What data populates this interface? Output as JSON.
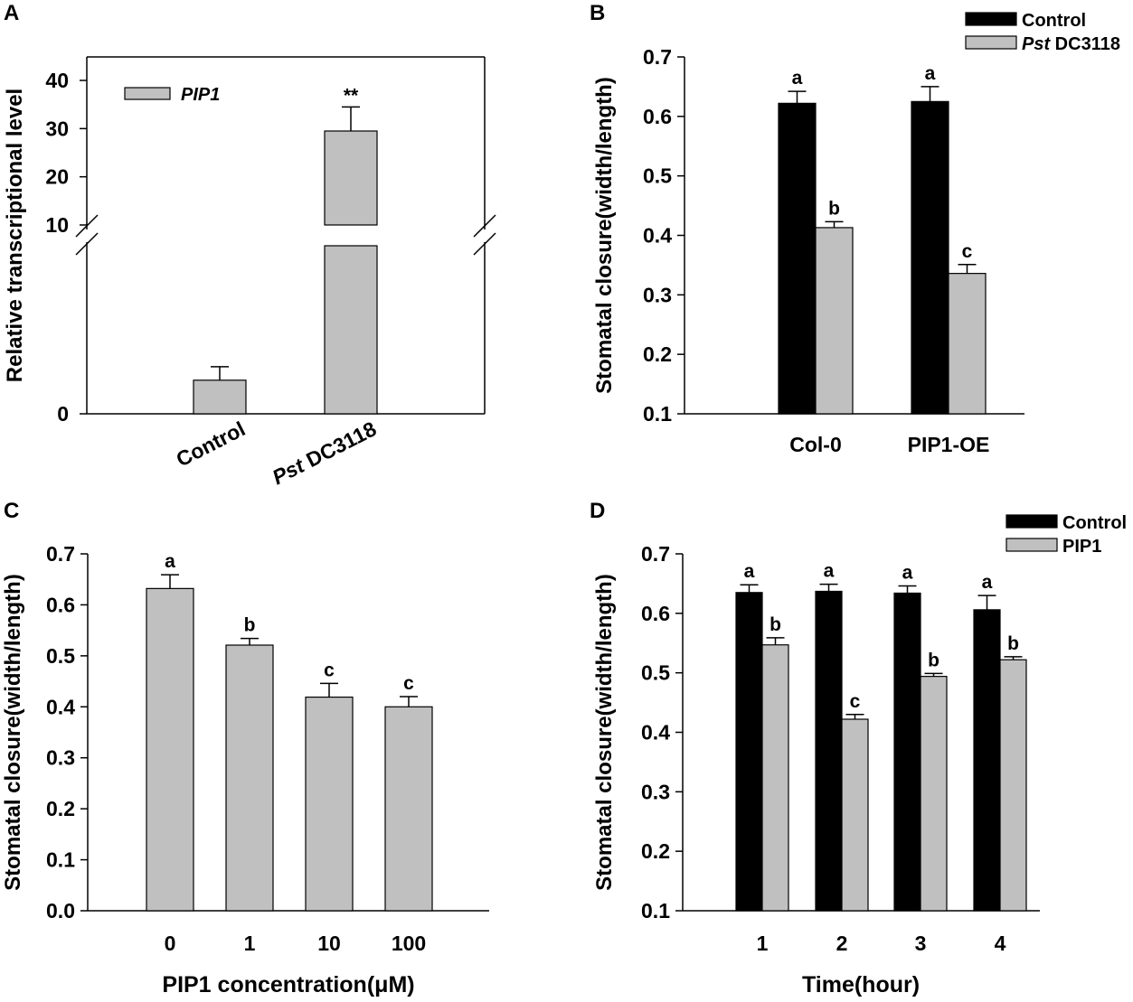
{
  "panels": {
    "A": "A",
    "B": "B",
    "C": "C",
    "D": "D"
  },
  "colors": {
    "control": "#000000",
    "treatment": "#c0c0c0"
  },
  "chart_data": [
    {
      "id": "A",
      "type": "bar",
      "title": "",
      "xlabel": "",
      "ylabel": "Relative transcriptional level",
      "broken_axis": {
        "lower_range": [
          0,
          5
        ],
        "upper_range": [
          10,
          45
        ],
        "break_marker": "//"
      },
      "yticks_lower": [
        "0"
      ],
      "yticks_upper": [
        "10",
        "20",
        "30",
        "40"
      ],
      "categories": [
        {
          "label": "Control",
          "prefix_italic": "",
          "suffix": "Control"
        },
        {
          "label": "Pst DC3118",
          "prefix_italic": "Pst",
          "suffix": " DC3118"
        }
      ],
      "legend": [
        {
          "name": "PIP1",
          "italic": true
        }
      ],
      "series": [
        {
          "name": "PIP1",
          "values": [
            1.0,
            29.5
          ],
          "errors": [
            0.4,
            5.0
          ]
        }
      ],
      "annotations": [
        "",
        "**"
      ]
    },
    {
      "id": "B",
      "type": "bar",
      "title": "",
      "xlabel": "",
      "ylabel": "Stomatal closure(width/length)",
      "ylim": [
        0.1,
        0.7
      ],
      "yticks": [
        "0.1",
        "0.2",
        "0.3",
        "0.4",
        "0.5",
        "0.6",
        "0.7"
      ],
      "categories": [
        "Col-0",
        "PIP1-OE"
      ],
      "legend": [
        {
          "name": "Control",
          "prefix_italic": "",
          "suffix": "Control"
        },
        {
          "name": "Pst DC3118",
          "prefix_italic": "Pst",
          "suffix": " DC3118"
        }
      ],
      "series": [
        {
          "name": "Control",
          "values": [
            0.622,
            0.625
          ],
          "errors": [
            0.02,
            0.025
          ],
          "letters": [
            "a",
            "a"
          ]
        },
        {
          "name": "Pst DC3118",
          "values": [
            0.413,
            0.336
          ],
          "errors": [
            0.01,
            0.015
          ],
          "letters": [
            "b",
            "c"
          ]
        }
      ]
    },
    {
      "id": "C",
      "type": "bar",
      "title": "",
      "xlabel": "PIP1 concentration(μM)",
      "ylabel": "Stomatal closure(width/length)",
      "ylim": [
        0.0,
        0.7
      ],
      "yticks": [
        "0.0",
        "0.1",
        "0.2",
        "0.3",
        "0.4",
        "0.5",
        "0.6",
        "0.7"
      ],
      "categories": [
        "0",
        "1",
        "10",
        "100"
      ],
      "series": [
        {
          "name": "PIP1",
          "values": [
            0.632,
            0.521,
            0.419,
            0.4
          ],
          "errors": [
            0.027,
            0.013,
            0.027,
            0.02
          ],
          "letters": [
            "a",
            "b",
            "c",
            "c"
          ]
        }
      ]
    },
    {
      "id": "D",
      "type": "bar",
      "title": "",
      "xlabel": "Time(hour)",
      "ylabel": "Stomatal closure(width/length)",
      "ylim": [
        0.1,
        0.7
      ],
      "yticks": [
        "0.1",
        "0.2",
        "0.3",
        "0.4",
        "0.5",
        "0.6",
        "0.7"
      ],
      "categories": [
        "1",
        "2",
        "3",
        "4"
      ],
      "legend": [
        {
          "name": "Control",
          "prefix_italic": "",
          "suffix": "Control"
        },
        {
          "name": "PIP1",
          "prefix_italic": "",
          "suffix": "PIP1"
        }
      ],
      "series": [
        {
          "name": "Control",
          "values": [
            0.635,
            0.637,
            0.634,
            0.606
          ],
          "errors": [
            0.013,
            0.012,
            0.012,
            0.024
          ],
          "letters": [
            "a",
            "a",
            "a",
            "a"
          ]
        },
        {
          "name": "PIP1",
          "values": [
            0.547,
            0.422,
            0.494,
            0.522
          ],
          "errors": [
            0.012,
            0.008,
            0.005,
            0.005
          ],
          "letters": [
            "b",
            "c",
            "b",
            "b"
          ]
        }
      ]
    }
  ]
}
